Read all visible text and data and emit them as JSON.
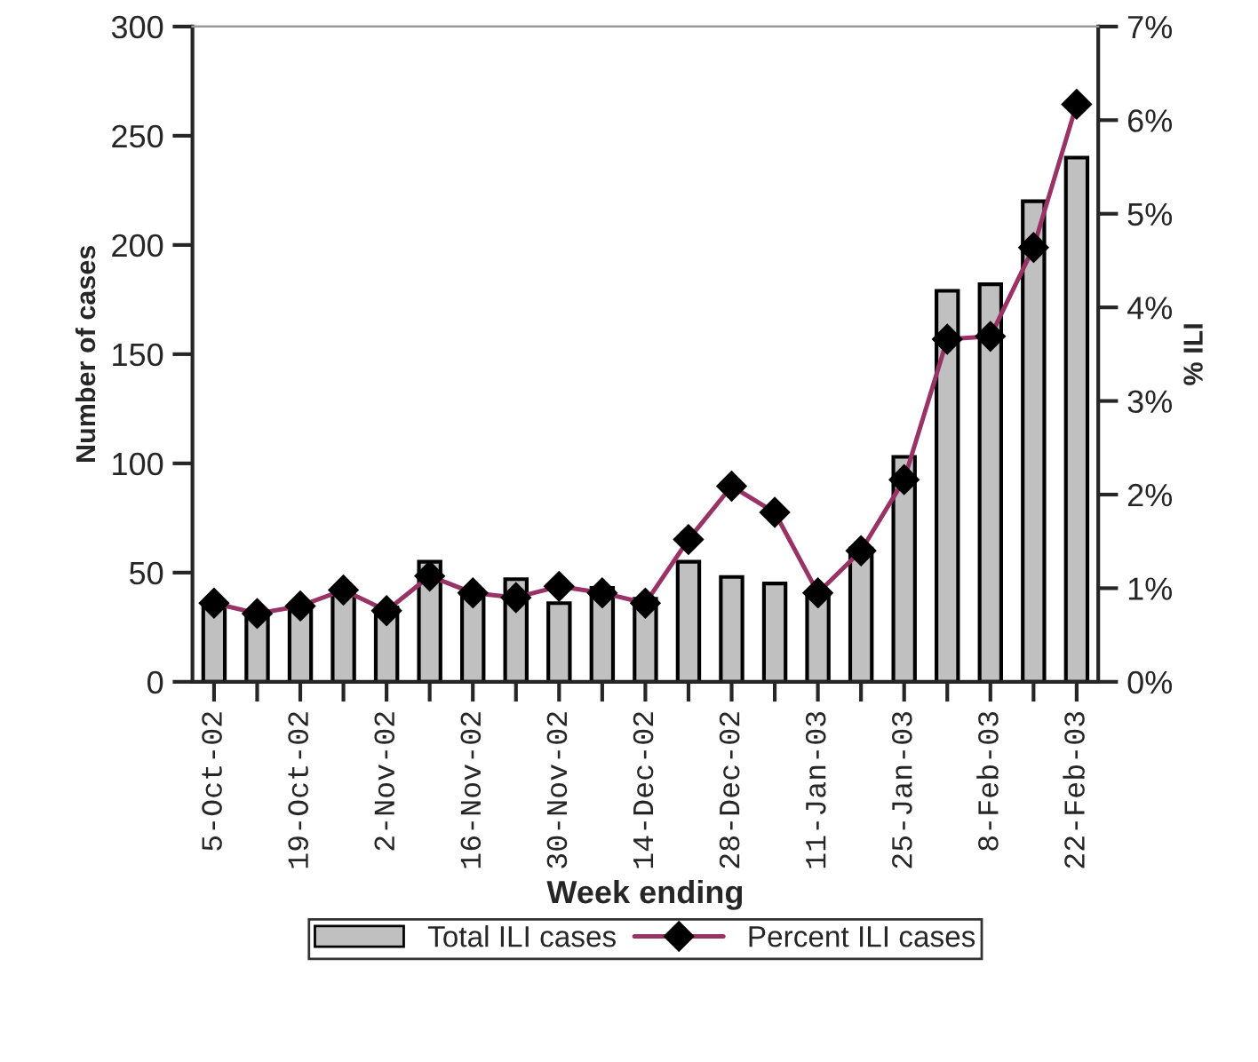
{
  "chart_data": {
    "type": "bar",
    "xlabel": "Week ending",
    "ylabel": "Number of cases",
    "y2label": "% ILI",
    "categories": [
      "5-Oct-02",
      null,
      "19-Oct-02",
      null,
      "2-Nov-02",
      null,
      "16-Nov-02",
      null,
      "30-Nov-02",
      null,
      "14-Dec-02",
      null,
      "28-Dec-02",
      null,
      "11-Jan-03",
      null,
      "25-Jan-03",
      null,
      "8-Feb-03",
      null,
      "22-Feb-03"
    ],
    "series": [
      {
        "name": "Total ILI cases",
        "color": "#c0c0c0",
        "values": [
          35,
          31,
          35,
          41,
          34,
          55,
          40,
          47,
          36,
          43,
          38,
          55,
          48,
          45,
          41,
          61,
          103,
          179,
          182,
          220,
          240
        ]
      },
      {
        "name": "Percent ILI cases",
        "type": "line",
        "axis": "y2",
        "color": "#993366",
        "marker": "diamond",
        "values": [
          0.84,
          0.73,
          0.81,
          0.98,
          0.76,
          1.13,
          0.95,
          0.9,
          1.02,
          0.95,
          0.84,
          1.52,
          2.09,
          1.81,
          0.95,
          1.4,
          2.16,
          3.66,
          3.69,
          4.64,
          6.17
        ]
      }
    ],
    "ylim": [
      0,
      300
    ],
    "yticks": [
      0,
      50,
      100,
      150,
      200,
      250,
      300
    ],
    "y2lim": [
      0,
      7
    ],
    "y2ticks": [
      {
        "value": 0,
        "label": "0%"
      },
      {
        "value": 1,
        "label": "1%"
      },
      {
        "value": 2,
        "label": "2%"
      },
      {
        "value": 3,
        "label": "3%"
      },
      {
        "value": 4,
        "label": "4%"
      },
      {
        "value": 5,
        "label": "5%"
      },
      {
        "value": 6,
        "label": "6%"
      },
      {
        "value": 7,
        "label": "7%"
      }
    ],
    "legend": "bottom",
    "grid": false
  }
}
